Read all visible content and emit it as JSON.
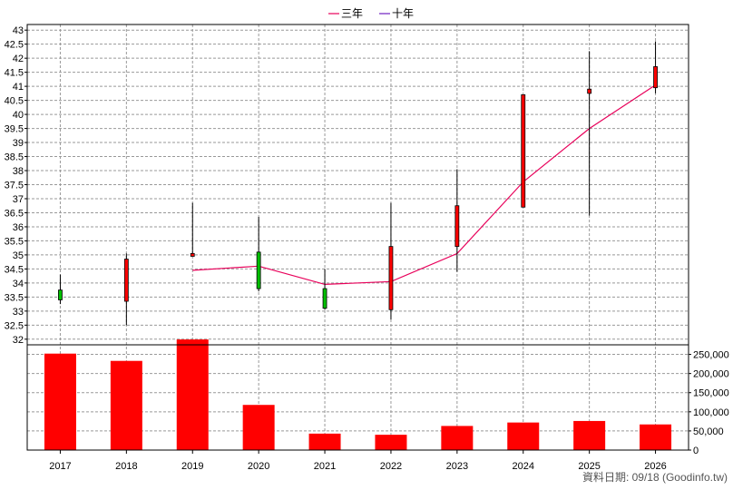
{
  "chart_data": {
    "type": "candlestick",
    "legend": [
      {
        "name": "三年",
        "color": "#e8005a"
      },
      {
        "name": "十年",
        "color": "#7020c0"
      }
    ],
    "categories": [
      "2017",
      "2018",
      "2019",
      "2020",
      "2021",
      "2022",
      "2023",
      "2024",
      "2025",
      "2026"
    ],
    "price": {
      "ylim": [
        31.8,
        43.2
      ],
      "ticks": [
        "32",
        "32.5",
        "33",
        "33.5",
        "34",
        "34.5",
        "35",
        "35.5",
        "36",
        "36.5",
        "37",
        "37.5",
        "38",
        "38.5",
        "39",
        "39.5",
        "40",
        "40.5",
        "41",
        "41.5",
        "42",
        "42.5",
        "43"
      ],
      "candles": [
        {
          "open": 33.4,
          "close": 33.75,
          "high": 34.3,
          "low": 33.25,
          "direction": "up"
        },
        {
          "open": 34.85,
          "close": 33.35,
          "high": 35.05,
          "low": 32.5,
          "direction": "down"
        },
        {
          "open": 35.05,
          "close": 34.95,
          "high": 36.85,
          "low": 34.95,
          "direction": "down"
        },
        {
          "open": 33.8,
          "close": 35.1,
          "high": 36.35,
          "low": 33.7,
          "direction": "up"
        },
        {
          "open": 33.1,
          "close": 33.8,
          "high": 34.5,
          "low": 33.05,
          "direction": "up"
        },
        {
          "open": 35.3,
          "close": 33.05,
          "high": 36.85,
          "low": 32.7,
          "direction": "down"
        },
        {
          "open": 36.75,
          "close": 35.3,
          "high": 38.05,
          "low": 34.4,
          "direction": "down"
        },
        {
          "open": 40.7,
          "close": 36.7,
          "high": 40.7,
          "low": 36.7,
          "direction": "down"
        },
        {
          "open": 40.9,
          "close": 40.75,
          "high": 42.25,
          "low": 36.4,
          "direction": "down"
        },
        {
          "open": 41.7,
          "close": 40.95,
          "high": 42.6,
          "low": 40.75,
          "direction": "down"
        }
      ],
      "line_series": [
        {
          "name": "三年",
          "values": [
            null,
            null,
            34.45,
            34.6,
            33.95,
            34.05,
            35.05,
            37.6,
            39.5,
            41.05
          ]
        }
      ]
    },
    "volume": {
      "ylim": [
        0,
        275000
      ],
      "ticks": [
        "0",
        "50,000",
        "100,000",
        "150,000",
        "200,000",
        "250,000"
      ],
      "values": [
        252000,
        233000,
        289000,
        118000,
        43000,
        40000,
        63000,
        72000,
        76000,
        67000
      ],
      "color": "#ff0000"
    },
    "grid": true
  },
  "footer": {
    "text": "資料日期: 09/18  (Goodinfo.tw)"
  }
}
